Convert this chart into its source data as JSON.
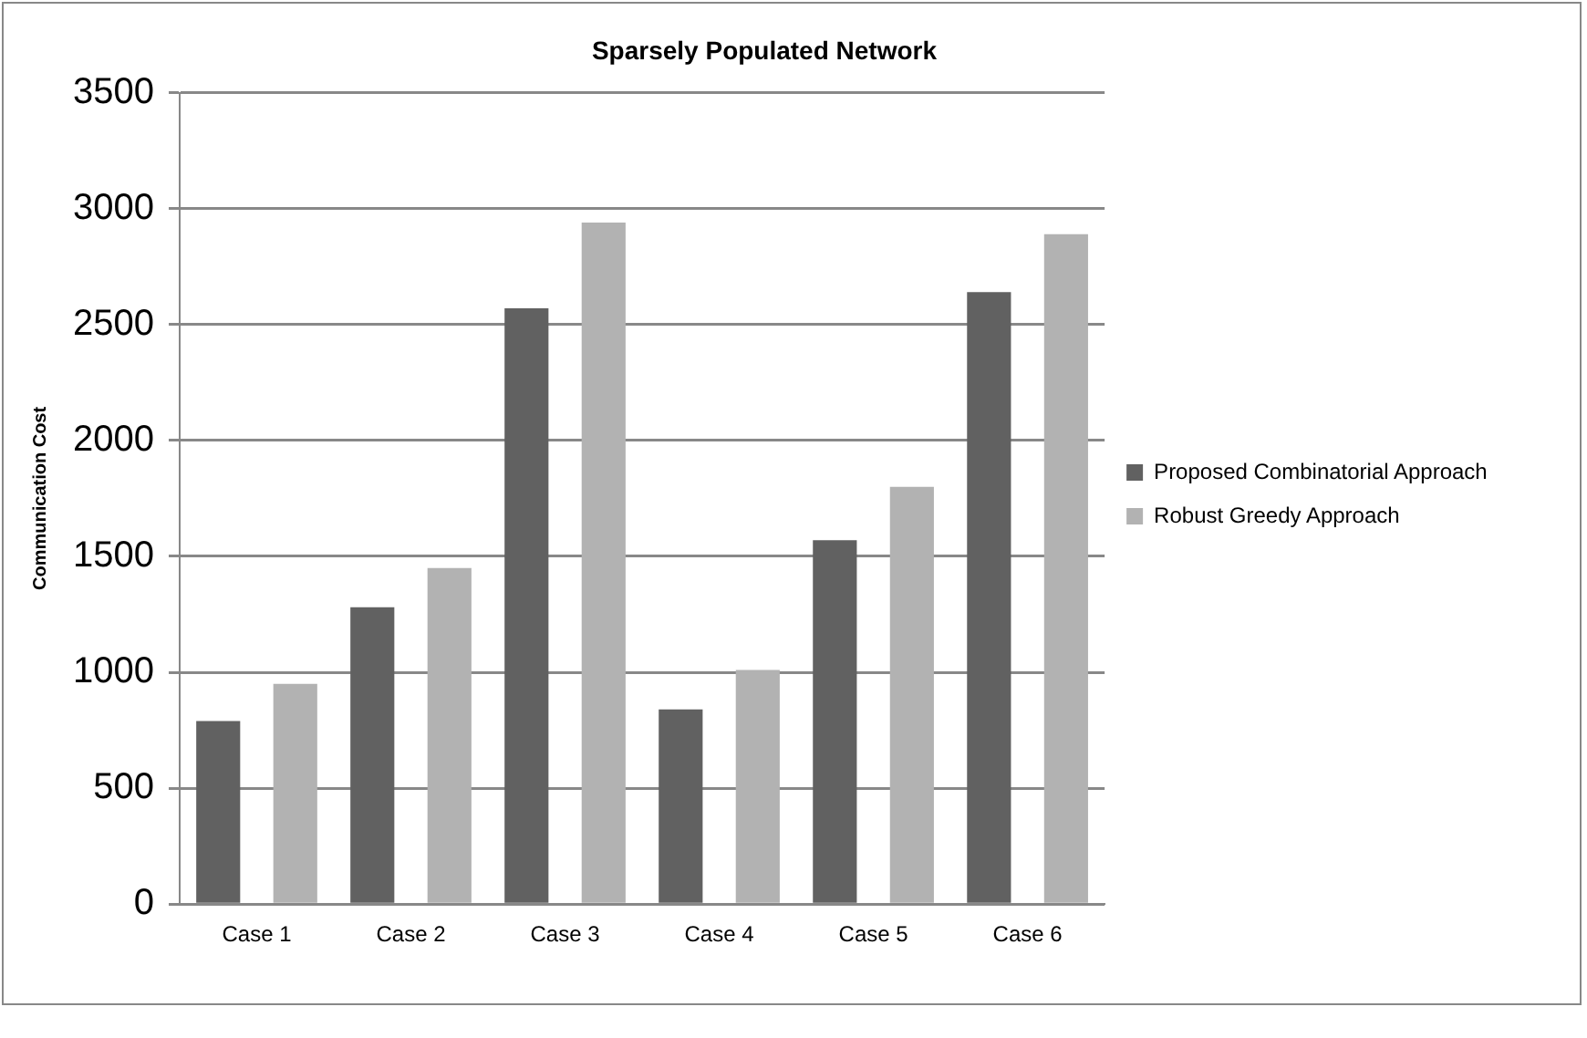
{
  "chart_data": {
    "type": "bar",
    "title": "Sparsely Populated Network",
    "ylabel": "Communication Cost",
    "categories": [
      "Case 1",
      "Case 2",
      "Case 3",
      "Case 4",
      "Case 5",
      "Case 6"
    ],
    "series": [
      {
        "name": "Proposed Combinatorial Approach",
        "color": "#616161",
        "values": [
          790,
          1280,
          2570,
          840,
          1570,
          2640
        ]
      },
      {
        "name": "Robust Greedy Approach",
        "color": "#b2b2b2",
        "values": [
          950,
          1450,
          2940,
          1010,
          1800,
          2890
        ]
      }
    ],
    "ylim": [
      0,
      3500
    ],
    "yticks": [
      0,
      500,
      1000,
      1500,
      2000,
      2500,
      3000,
      3500
    ],
    "grid": "y",
    "legend": "right"
  }
}
